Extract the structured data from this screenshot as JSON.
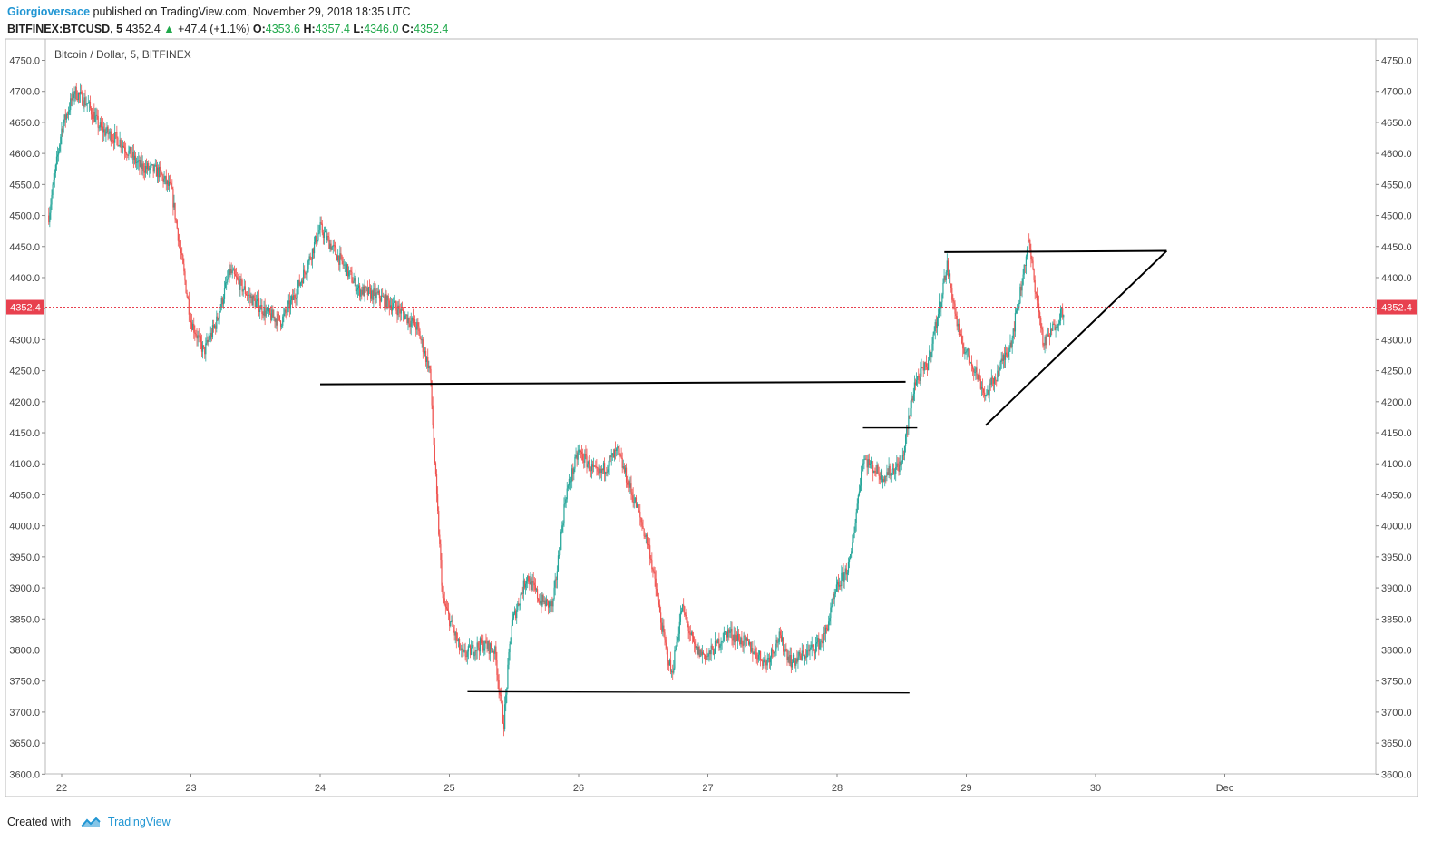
{
  "header": {
    "author": "Giorgioversace",
    "published": "published on TradingView.com, November 29, 2018 18:35 UTC",
    "symbol": "BITFINEX:BTCUSD, 5",
    "last": "4352.4",
    "change": "+47.4 (+1.1%)",
    "o_label": "O:",
    "o_value": "4353.6",
    "h_label": "H:",
    "h_value": "4357.4",
    "l_label": "L:",
    "l_value": "4346.0",
    "c_label": "C:",
    "c_value": "4352.4"
  },
  "footer": {
    "created_with": "Created with",
    "brand": "TradingView"
  },
  "colors": {
    "up": "#26a69a",
    "down": "#ef5350",
    "price_line": "#e8414f",
    "author": "#2196d3"
  },
  "chart_data": {
    "type": "candlestick",
    "title": "Bitcoin / Dollar, 5, BITFINEX",
    "ylim": [
      3600,
      4750
    ],
    "y_ticks": [
      "4750.0",
      "4700.0",
      "4650.0",
      "4600.0",
      "4550.0",
      "4500.0",
      "4450.0",
      "4400.0",
      "4350.0",
      "4300.0",
      "4250.0",
      "4200.0",
      "4150.0",
      "4100.0",
      "4050.0",
      "4000.0",
      "3950.0",
      "3900.0",
      "3850.0",
      "3800.0",
      "3750.0",
      "3700.0",
      "3650.0",
      "3600.0"
    ],
    "x_ticks": [
      "22",
      "23",
      "24",
      "25",
      "26",
      "27",
      "28",
      "29",
      "30",
      "Dec"
    ],
    "last_price": 4352.4,
    "last_price_label": "4352.4",
    "price_path": [
      [
        21.9,
        4500
      ],
      [
        22.0,
        4640
      ],
      [
        22.1,
        4700
      ],
      [
        22.2,
        4680
      ],
      [
        22.3,
        4640
      ],
      [
        22.45,
        4620
      ],
      [
        22.6,
        4580
      ],
      [
        22.75,
        4570
      ],
      [
        22.85,
        4540
      ],
      [
        23.0,
        4330
      ],
      [
        23.1,
        4280
      ],
      [
        23.2,
        4330
      ],
      [
        23.3,
        4410
      ],
      [
        23.45,
        4370
      ],
      [
        23.6,
        4340
      ],
      [
        23.7,
        4330
      ],
      [
        23.8,
        4370
      ],
      [
        23.9,
        4420
      ],
      [
        24.0,
        4480
      ],
      [
        24.15,
        4430
      ],
      [
        24.3,
        4380
      ],
      [
        24.45,
        4370
      ],
      [
        24.6,
        4350
      ],
      [
        24.75,
        4320
      ],
      [
        24.85,
        4250
      ],
      [
        24.9,
        4050
      ],
      [
        24.95,
        3880
      ],
      [
        25.1,
        3790
      ],
      [
        25.25,
        3810
      ],
      [
        25.35,
        3800
      ],
      [
        25.42,
        3680
      ],
      [
        25.48,
        3840
      ],
      [
        25.6,
        3920
      ],
      [
        25.7,
        3880
      ],
      [
        25.8,
        3870
      ],
      [
        25.9,
        4050
      ],
      [
        26.0,
        4120
      ],
      [
        26.15,
        4080
      ],
      [
        26.3,
        4120
      ],
      [
        26.45,
        4030
      ],
      [
        26.55,
        3960
      ],
      [
        26.65,
        3830
      ],
      [
        26.72,
        3760
      ],
      [
        26.8,
        3870
      ],
      [
        26.9,
        3800
      ],
      [
        27.0,
        3790
      ],
      [
        27.15,
        3830
      ],
      [
        27.3,
        3810
      ],
      [
        27.45,
        3780
      ],
      [
        27.55,
        3820
      ],
      [
        27.65,
        3780
      ],
      [
        27.8,
        3800
      ],
      [
        27.9,
        3820
      ],
      [
        28.0,
        3900
      ],
      [
        28.1,
        3940
      ],
      [
        28.2,
        4110
      ],
      [
        28.35,
        4080
      ],
      [
        28.5,
        4100
      ],
      [
        28.6,
        4230
      ],
      [
        28.7,
        4260
      ],
      [
        28.78,
        4340
      ],
      [
        28.85,
        4420
      ],
      [
        28.95,
        4300
      ],
      [
        29.05,
        4260
      ],
      [
        29.15,
        4210
      ],
      [
        29.25,
        4250
      ],
      [
        29.35,
        4300
      ],
      [
        29.42,
        4380
      ],
      [
        29.48,
        4460
      ],
      [
        29.55,
        4360
      ],
      [
        29.6,
        4290
      ],
      [
        29.7,
        4330
      ],
      [
        29.76,
        4352
      ]
    ],
    "annotations": {
      "resistance_line": [
        [
          24.0,
          4228
        ],
        [
          28.53,
          4232
        ]
      ],
      "support_line": [
        [
          25.14,
          3733
        ],
        [
          28.56,
          3731
        ]
      ],
      "short_level": [
        [
          28.2,
          4158
        ],
        [
          28.62,
          4158
        ]
      ],
      "triangle_top": [
        [
          28.83,
          4441
        ],
        [
          30.55,
          4443
        ]
      ],
      "triangle_bottom": [
        [
          29.15,
          4162
        ],
        [
          30.55,
          4443
        ]
      ]
    }
  }
}
